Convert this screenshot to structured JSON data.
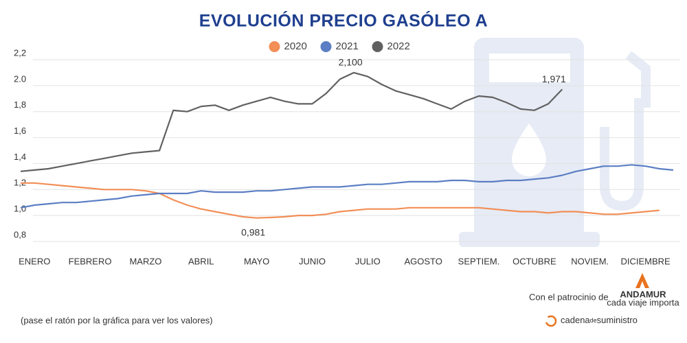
{
  "chart_data": {
    "type": "line",
    "title": "EVOLUCIÓN PRECIO GASÓLEO A",
    "categories": [
      null,
      "ENERO",
      null,
      null,
      null,
      "FEBRERO",
      null,
      null,
      null,
      "MARZO",
      null,
      null,
      null,
      "ABRIL",
      null,
      null,
      null,
      "MAYO",
      null,
      null,
      null,
      "JUNIO",
      null,
      null,
      null,
      "JULIO",
      null,
      null,
      null,
      "AGOSTO",
      null,
      null,
      null,
      "SEPTIEM.",
      null,
      null,
      null,
      "OCTUBRE",
      null,
      null,
      null,
      "NOVIEM.",
      null,
      null,
      null,
      "DICIEMBRE",
      null,
      null
    ],
    "series": [
      {
        "name": "2020",
        "color": "#f28e56",
        "values": [
          1.25,
          1.25,
          1.24,
          1.23,
          1.22,
          1.21,
          1.2,
          1.2,
          1.2,
          1.19,
          1.17,
          1.12,
          1.08,
          1.05,
          1.03,
          1.01,
          0.99,
          0.981,
          0.985,
          0.99,
          1.0,
          1.0,
          1.01,
          1.03,
          1.04,
          1.05,
          1.05,
          1.05,
          1.06,
          1.06,
          1.06,
          1.06,
          1.06,
          1.06,
          1.05,
          1.04,
          1.03,
          1.03,
          1.02,
          1.03,
          1.03,
          1.02,
          1.01,
          1.01,
          1.02,
          1.03,
          1.04,
          null
        ],
        "value_labels": [
          null,
          null,
          null,
          null,
          null,
          null,
          null,
          null,
          null,
          null,
          null,
          null,
          null,
          null,
          null,
          null,
          null,
          "0,981",
          null,
          null,
          null,
          null,
          null,
          null,
          null,
          null,
          null,
          null,
          null,
          null,
          null,
          null,
          null,
          null,
          null,
          null,
          null,
          null,
          null,
          null,
          null,
          null,
          null,
          null,
          null,
          null,
          null,
          null
        ]
      },
      {
        "name": "2021",
        "color": "#5b7ec4",
        "values": [
          1.06,
          1.08,
          1.09,
          1.1,
          1.1,
          1.11,
          1.12,
          1.13,
          1.15,
          1.16,
          1.17,
          1.17,
          1.17,
          1.19,
          1.18,
          1.18,
          1.18,
          1.19,
          1.19,
          1.2,
          1.21,
          1.22,
          1.22,
          1.22,
          1.23,
          1.24,
          1.24,
          1.25,
          1.26,
          1.26,
          1.26,
          1.27,
          1.27,
          1.26,
          1.26,
          1.27,
          1.27,
          1.28,
          1.29,
          1.31,
          1.34,
          1.36,
          1.38,
          1.38,
          1.39,
          1.38,
          1.36,
          1.35
        ]
      },
      {
        "name": "2022",
        "color": "#606060",
        "values": [
          1.34,
          1.35,
          1.36,
          1.38,
          1.4,
          1.42,
          1.44,
          1.46,
          1.48,
          1.49,
          1.5,
          1.81,
          1.8,
          1.84,
          1.85,
          1.81,
          1.85,
          1.88,
          1.91,
          1.88,
          1.86,
          1.86,
          1.94,
          2.05,
          2.1,
          2.07,
          2.01,
          1.96,
          1.93,
          1.9,
          1.86,
          1.82,
          1.88,
          1.92,
          1.91,
          1.87,
          1.82,
          1.81,
          1.86,
          1.971,
          null,
          null,
          null,
          null,
          null,
          null,
          null,
          null
        ],
        "value_labels": [
          null,
          null,
          null,
          null,
          null,
          null,
          null,
          null,
          null,
          null,
          null,
          null,
          null,
          null,
          null,
          null,
          null,
          null,
          null,
          null,
          null,
          null,
          null,
          null,
          "2,100",
          null,
          null,
          null,
          null,
          null,
          null,
          null,
          null,
          null,
          null,
          null,
          null,
          null,
          null,
          "1,971",
          null,
          null,
          null,
          null,
          null,
          null,
          null,
          null
        ]
      }
    ],
    "ylim": [
      0.8,
      2.2
    ],
    "yticks": [
      {
        "value": 0.8,
        "label": "0,8"
      },
      {
        "value": 1.0,
        "label": "1,0"
      },
      {
        "value": 1.2,
        "label": "1,2"
      },
      {
        "value": 1.4,
        "label": "1,4"
      },
      {
        "value": 1.6,
        "label": "1,6"
      },
      {
        "value": 1.8,
        "label": "1,8"
      },
      {
        "value": 2.0,
        "label": "2.0"
      },
      {
        "value": 2.2,
        "label": "2,2"
      }
    ],
    "grid": true,
    "legend": "top"
  },
  "footer": {
    "sponsor": "Con el patrocinio de",
    "brand": "ANDAMUR",
    "tagline": "cada viaje importa",
    "hint": "(pase el ratón por la gráfica para ver los valores)",
    "logo": [
      "cadena",
      "de",
      "suministro"
    ]
  }
}
